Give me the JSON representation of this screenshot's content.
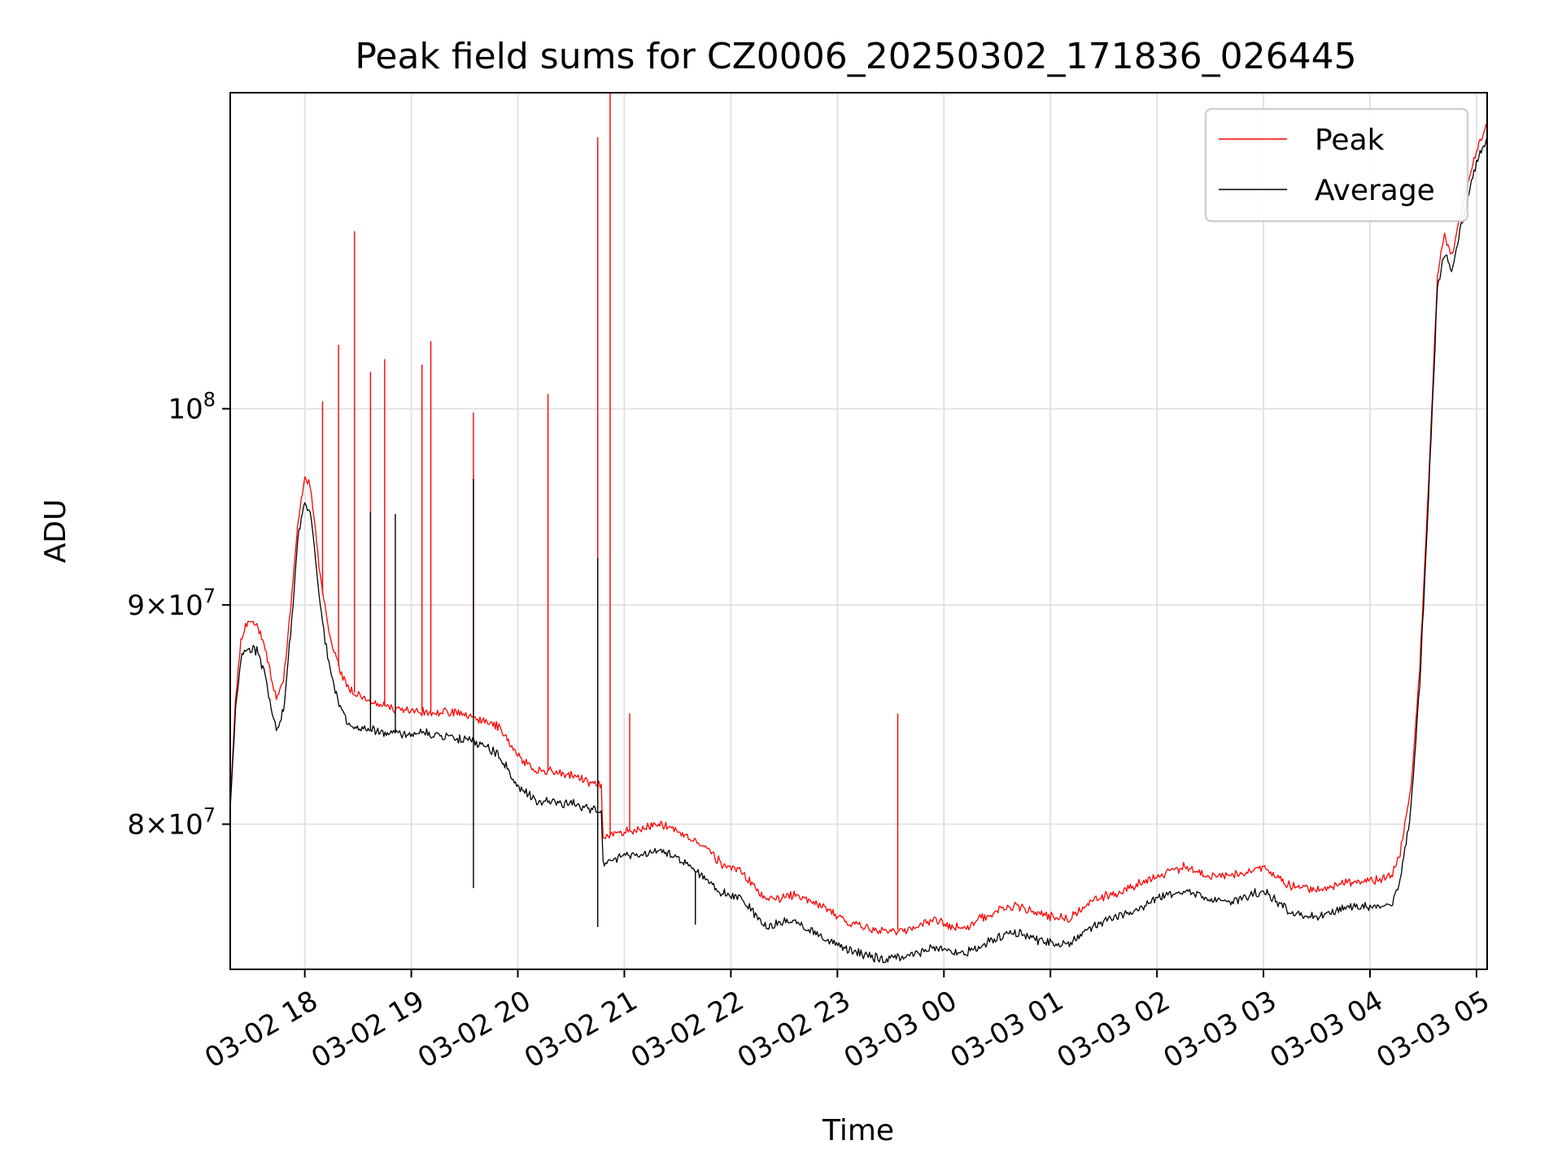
{
  "chart_data": {
    "type": "line",
    "title": "Peak field sums for CZ0006_20250302_171836_026445",
    "xlabel": "Time",
    "ylabel": "ADU",
    "y_scale": "log",
    "xlim": [
      "2025-03-02 17:18",
      "2025-03-03 05:06"
    ],
    "ylim": [
      74000000,
      118500000
    ],
    "grid": true,
    "legend_position": "top-right",
    "x_ticks": [
      {
        "t": "2025-03-02 18:00",
        "label": "03-02 18"
      },
      {
        "t": "2025-03-02 19:00",
        "label": "03-02 19"
      },
      {
        "t": "2025-03-02 20:00",
        "label": "03-02 20"
      },
      {
        "t": "2025-03-02 21:00",
        "label": "03-02 21"
      },
      {
        "t": "2025-03-02 22:00",
        "label": "03-02 22"
      },
      {
        "t": "2025-03-02 23:00",
        "label": "03-02 23"
      },
      {
        "t": "2025-03-03 00:00",
        "label": "03-03 00"
      },
      {
        "t": "2025-03-03 01:00",
        "label": "03-03 01"
      },
      {
        "t": "2025-03-03 02:00",
        "label": "03-03 02"
      },
      {
        "t": "2025-03-03 03:00",
        "label": "03-03 03"
      },
      {
        "t": "2025-03-03 04:00",
        "label": "03-03 04"
      },
      {
        "t": "2025-03-03 05:00",
        "label": "03-03 05"
      }
    ],
    "y_ticks": [
      {
        "value": 80000000,
        "base": "8",
        "exp": "7"
      },
      {
        "value": 90000000,
        "base": "9",
        "exp": "7"
      },
      {
        "value": 100000000,
        "base": "",
        "exp": "8"
      }
    ],
    "series": [
      {
        "name": "Peak",
        "color": "#ff0000",
        "points": [
          [
            "2025-03-02 17:18",
            80.8
          ],
          [
            "2025-03-02 17:21",
            85.5
          ],
          [
            "2025-03-02 17:24",
            88.3
          ],
          [
            "2025-03-02 17:28",
            89.2
          ],
          [
            "2025-03-02 17:33",
            89.0
          ],
          [
            "2025-03-02 17:37",
            88.2
          ],
          [
            "2025-03-02 17:41",
            86.6
          ],
          [
            "2025-03-02 17:44",
            85.6
          ],
          [
            "2025-03-02 17:48",
            86.4
          ],
          [
            "2025-03-02 17:52",
            89.8
          ],
          [
            "2025-03-02 17:56",
            94.0
          ],
          [
            "2025-03-02 18:00",
            96.2
          ],
          [
            "2025-03-02 18:03",
            96.0
          ],
          [
            "2025-03-02 18:06",
            93.6
          ],
          [
            "2025-03-02 18:10",
            90.5
          ],
          [
            "2025-03-02 18:15",
            88.2
          ],
          [
            "2025-03-02 18:20",
            86.8
          ],
          [
            "2025-03-02 18:25",
            86.0
          ],
          [
            "2025-03-02 18:35",
            85.5
          ],
          [
            "2025-03-02 18:50",
            85.1
          ],
          [
            "2025-03-02 19:10",
            85.0
          ],
          [
            "2025-03-02 19:30",
            84.9
          ],
          [
            "2025-03-02 19:40",
            84.6
          ],
          [
            "2025-03-02 19:50",
            84.3
          ],
          [
            "2025-03-02 20:00",
            83.0
          ],
          [
            "2025-03-02 20:10",
            82.4
          ],
          [
            "2025-03-02 20:30",
            82.2
          ],
          [
            "2025-03-02 20:40",
            81.8
          ],
          [
            "2025-03-02 20:47",
            81.7
          ],
          [
            "2025-03-02 20:48",
            79.4
          ],
          [
            "2025-03-02 21:00",
            79.7
          ],
          [
            "2025-03-02 21:20",
            80.0
          ],
          [
            "2025-03-02 21:30",
            79.7
          ],
          [
            "2025-03-02 21:45",
            79.0
          ],
          [
            "2025-03-02 21:55",
            78.3
          ],
          [
            "2025-03-02 22:05",
            78.0
          ],
          [
            "2025-03-02 22:20",
            76.8
          ],
          [
            "2025-03-02 22:35",
            77.0
          ],
          [
            "2025-03-02 22:50",
            76.6
          ],
          [
            "2025-03-02 23:05",
            75.9
          ],
          [
            "2025-03-02 23:25",
            75.5
          ],
          [
            "2025-03-02 23:40",
            75.6
          ],
          [
            "2025-03-02 23:55",
            76.0
          ],
          [
            "2025-03-03 00:10",
            75.6
          ],
          [
            "2025-03-03 00:25",
            76.2
          ],
          [
            "2025-03-03 00:40",
            76.6
          ],
          [
            "2025-03-03 00:55",
            76.2
          ],
          [
            "2025-03-03 01:10",
            76.0
          ],
          [
            "2025-03-03 01:25",
            76.8
          ],
          [
            "2025-03-03 01:45",
            77.3
          ],
          [
            "2025-03-03 02:00",
            77.8
          ],
          [
            "2025-03-03 02:15",
            78.2
          ],
          [
            "2025-03-03 02:30",
            77.8
          ],
          [
            "2025-03-03 02:45",
            77.9
          ],
          [
            "2025-03-03 03:00",
            78.2
          ],
          [
            "2025-03-03 03:15",
            77.4
          ],
          [
            "2025-03-03 03:30",
            77.2
          ],
          [
            "2025-03-03 03:45",
            77.5
          ],
          [
            "2025-03-03 04:00",
            77.6
          ],
          [
            "2025-03-03 04:12",
            77.8
          ],
          [
            "2025-03-03 04:17",
            78.8
          ],
          [
            "2025-03-03 04:23",
            81.5
          ],
          [
            "2025-03-03 04:28",
            87.0
          ],
          [
            "2025-03-03 04:33",
            96.0
          ],
          [
            "2025-03-03 04:38",
            107.5
          ],
          [
            "2025-03-03 04:42",
            109.7
          ],
          [
            "2025-03-03 04:46",
            108.6
          ],
          [
            "2025-03-03 04:50",
            110.5
          ],
          [
            "2025-03-03 04:55",
            112.8
          ],
          [
            "2025-03-03 05:00",
            114.8
          ],
          [
            "2025-03-03 05:06",
            116.5
          ]
        ],
        "spikes": [
          [
            "2025-03-02 18:10",
            100.4
          ],
          [
            "2025-03-02 18:19",
            103.5
          ],
          [
            "2025-03-02 18:28",
            110.0
          ],
          [
            "2025-03-02 18:37",
            102.0
          ],
          [
            "2025-03-02 18:45",
            102.7
          ],
          [
            "2025-03-02 19:06",
            102.4
          ],
          [
            "2025-03-02 19:11",
            103.7
          ],
          [
            "2025-03-02 19:35",
            99.8
          ],
          [
            "2025-03-02 20:17",
            100.8
          ],
          [
            "2025-03-02 20:45",
            115.7
          ],
          [
            "2025-03-02 20:52",
            118.5
          ],
          [
            "2025-03-02 21:03",
            84.9
          ],
          [
            "2025-03-02 23:34",
            84.9
          ]
        ]
      },
      {
        "name": "Average",
        "color": "#000000",
        "points": [
          [
            "2025-03-02 17:18",
            80.5
          ],
          [
            "2025-03-02 17:21",
            85.0
          ],
          [
            "2025-03-02 17:24",
            87.4
          ],
          [
            "2025-03-02 17:28",
            88.0
          ],
          [
            "2025-03-02 17:33",
            87.8
          ],
          [
            "2025-03-02 17:37",
            86.8
          ],
          [
            "2025-03-02 17:41",
            85.1
          ],
          [
            "2025-03-02 17:44",
            84.1
          ],
          [
            "2025-03-02 17:48",
            85.0
          ],
          [
            "2025-03-02 17:52",
            88.6
          ],
          [
            "2025-03-02 17:56",
            93.2
          ],
          [
            "2025-03-02 18:00",
            95.0
          ],
          [
            "2025-03-02 18:03",
            94.8
          ],
          [
            "2025-03-02 18:06",
            92.2
          ],
          [
            "2025-03-02 18:10",
            89.0
          ],
          [
            "2025-03-02 18:15",
            86.6
          ],
          [
            "2025-03-02 18:20",
            85.2
          ],
          [
            "2025-03-02 18:25",
            84.4
          ],
          [
            "2025-03-02 18:35",
            84.2
          ],
          [
            "2025-03-02 18:50",
            84.0
          ],
          [
            "2025-03-02 19:10",
            84.0
          ],
          [
            "2025-03-02 19:30",
            83.7
          ],
          [
            "2025-03-02 19:40",
            83.5
          ],
          [
            "2025-03-02 19:50",
            83.0
          ],
          [
            "2025-03-02 20:00",
            81.6
          ],
          [
            "2025-03-02 20:10",
            81.0
          ],
          [
            "2025-03-02 20:30",
            80.9
          ],
          [
            "2025-03-02 20:40",
            80.7
          ],
          [
            "2025-03-02 20:47",
            80.5
          ],
          [
            "2025-03-02 20:48",
            78.3
          ],
          [
            "2025-03-02 21:00",
            78.6
          ],
          [
            "2025-03-02 21:20",
            78.9
          ],
          [
            "2025-03-02 21:30",
            78.6
          ],
          [
            "2025-03-02 21:45",
            77.7
          ],
          [
            "2025-03-02 21:55",
            77.1
          ],
          [
            "2025-03-02 22:05",
            76.9
          ],
          [
            "2025-03-02 22:20",
            75.7
          ],
          [
            "2025-03-02 22:35",
            76.0
          ],
          [
            "2025-03-02 22:50",
            75.4
          ],
          [
            "2025-03-02 23:05",
            74.8
          ],
          [
            "2025-03-02 23:25",
            74.4
          ],
          [
            "2025-03-02 23:40",
            74.5
          ],
          [
            "2025-03-02 23:55",
            74.9
          ],
          [
            "2025-03-03 00:10",
            74.6
          ],
          [
            "2025-03-03 00:25",
            75.1
          ],
          [
            "2025-03-03 00:40",
            75.5
          ],
          [
            "2025-03-03 00:55",
            75.1
          ],
          [
            "2025-03-03 01:10",
            75.0
          ],
          [
            "2025-03-03 01:25",
            75.8
          ],
          [
            "2025-03-03 01:45",
            76.3
          ],
          [
            "2025-03-03 02:00",
            76.9
          ],
          [
            "2025-03-03 02:15",
            77.2
          ],
          [
            "2025-03-03 02:30",
            76.8
          ],
          [
            "2025-03-03 02:45",
            76.8
          ],
          [
            "2025-03-03 03:00",
            77.2
          ],
          [
            "2025-03-03 03:15",
            76.3
          ],
          [
            "2025-03-03 03:30",
            76.1
          ],
          [
            "2025-03-03 03:45",
            76.5
          ],
          [
            "2025-03-03 04:00",
            76.5
          ],
          [
            "2025-03-03 04:12",
            76.6
          ],
          [
            "2025-03-03 04:17",
            77.6
          ],
          [
            "2025-03-03 04:23",
            80.6
          ],
          [
            "2025-03-03 04:28",
            86.2
          ],
          [
            "2025-03-03 04:33",
            95.4
          ],
          [
            "2025-03-03 04:38",
            106.8
          ],
          [
            "2025-03-03 04:42",
            108.6
          ],
          [
            "2025-03-03 04:46",
            107.8
          ],
          [
            "2025-03-03 04:50",
            109.7
          ],
          [
            "2025-03-03 04:55",
            112.0
          ],
          [
            "2025-03-03 05:00",
            114.2
          ],
          [
            "2025-03-03 05:06",
            115.7
          ]
        ],
        "spikes": [
          [
            "2025-03-02 18:37",
            94.6
          ],
          [
            "2025-03-02 18:51",
            94.5
          ],
          [
            "2025-03-02 19:35",
            96.3
          ],
          [
            "2025-03-02 19:35",
            77.3
          ],
          [
            "2025-03-02 20:45",
            92.3
          ],
          [
            "2025-03-02 20:45",
            75.7
          ],
          [
            "2025-03-02 21:40",
            75.8
          ]
        ]
      }
    ]
  }
}
